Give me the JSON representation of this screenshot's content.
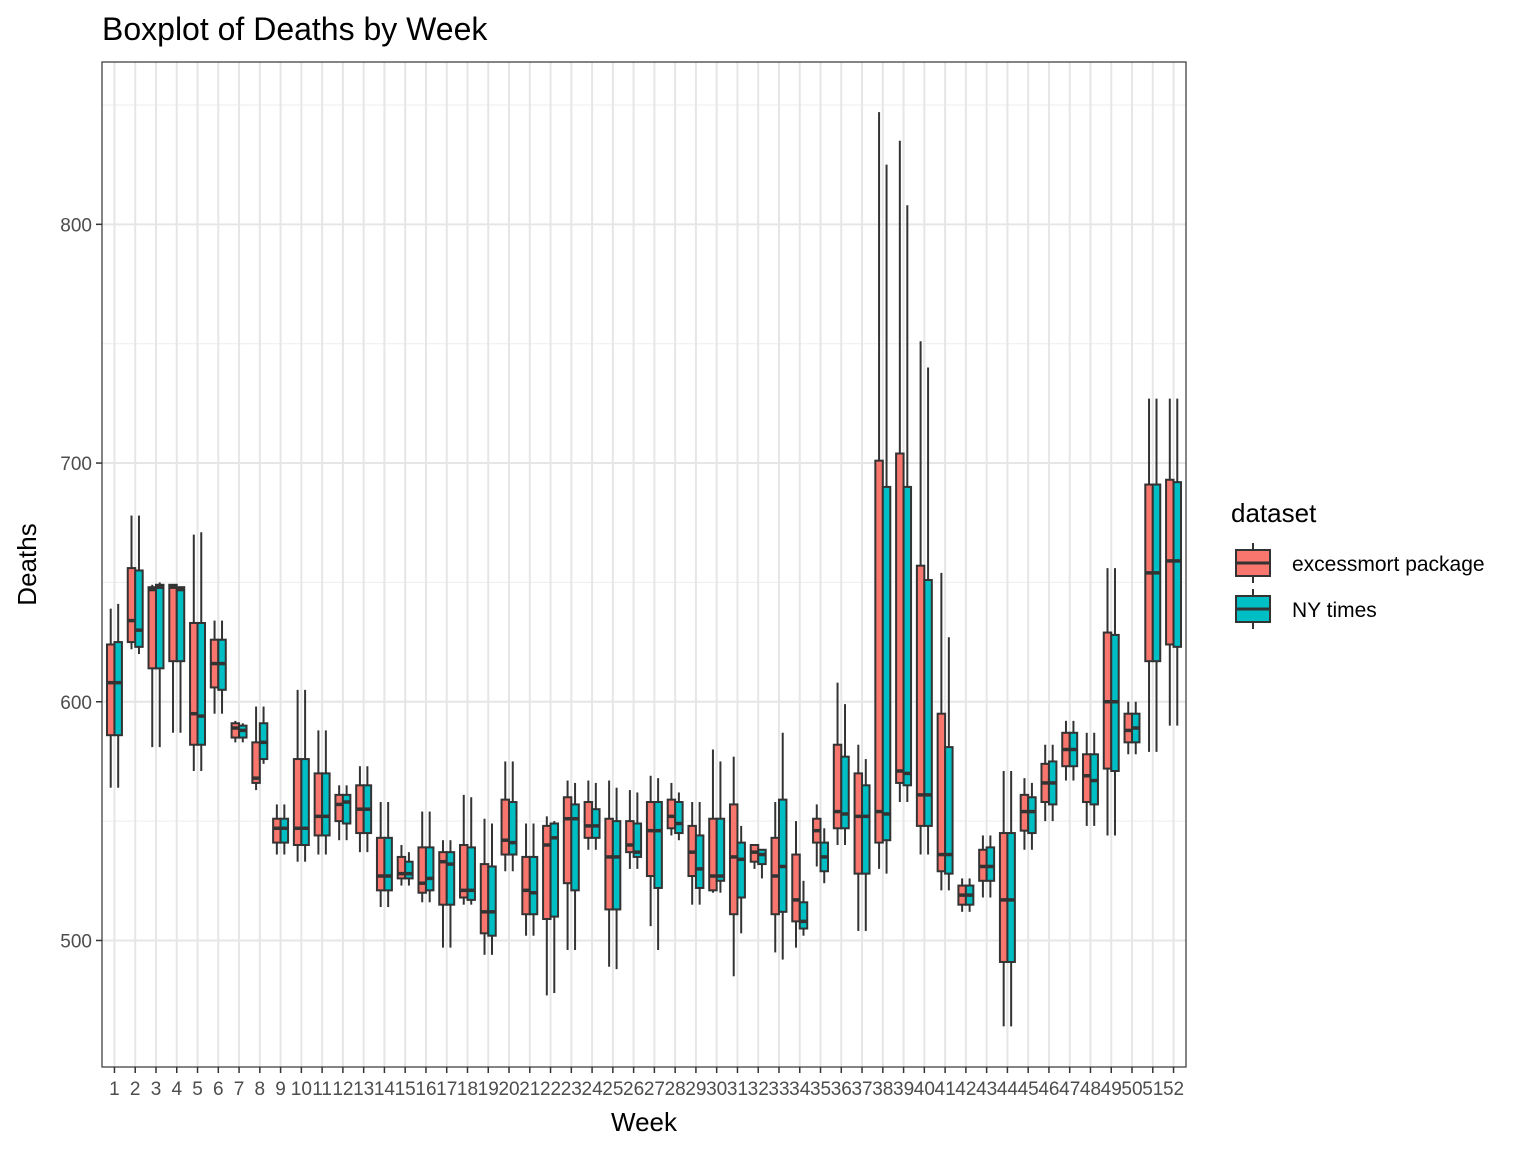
{
  "chart_data": {
    "type": "boxplot",
    "title": "Boxplot of Deaths by Week",
    "xlabel": "Week",
    "ylabel": "Deaths",
    "ylim": [
      447,
      868
    ],
    "yticks": [
      500,
      600,
      700,
      800
    ],
    "grid": true,
    "legend": {
      "title": "dataset",
      "placement": "right"
    },
    "categories": [
      "1",
      "2",
      "3",
      "4",
      "5",
      "6",
      "7",
      "8",
      "9",
      "10",
      "11",
      "12",
      "13",
      "14",
      "15",
      "16",
      "17",
      "18",
      "19",
      "20",
      "21",
      "22",
      "23",
      "24",
      "25",
      "26",
      "27",
      "28",
      "29",
      "30",
      "31",
      "32",
      "33",
      "34",
      "35",
      "36",
      "37",
      "38",
      "39",
      "40",
      "41",
      "42",
      "43",
      "44",
      "45",
      "46",
      "47",
      "48",
      "49",
      "50",
      "51",
      "52"
    ],
    "series": [
      {
        "name": "excessmort package",
        "color": "#F8766D",
        "boxes": [
          [
            564,
            586,
            608,
            624,
            639
          ],
          [
            622,
            625,
            634,
            656,
            678
          ],
          [
            581,
            614,
            647,
            648,
            649
          ],
          [
            587,
            617,
            648,
            649,
            649
          ],
          [
            571,
            582,
            595,
            633,
            670
          ],
          [
            595,
            606,
            616,
            626,
            634
          ],
          [
            583,
            585,
            589,
            591,
            592
          ],
          [
            563,
            566,
            568,
            583,
            598
          ],
          [
            536,
            541,
            547,
            551,
            557
          ],
          [
            533,
            540,
            547,
            576,
            605
          ],
          [
            536,
            544,
            552,
            570,
            588
          ],
          [
            542,
            550,
            557,
            561,
            565
          ],
          [
            537,
            545,
            555,
            565,
            573
          ],
          [
            514,
            521,
            527,
            543,
            558
          ],
          [
            523,
            526,
            528,
            535,
            540
          ],
          [
            516,
            520,
            524,
            539,
            554
          ],
          [
            497,
            515,
            533,
            537,
            542
          ],
          [
            515,
            518,
            521,
            540,
            561
          ],
          [
            494,
            503,
            512,
            532,
            551
          ],
          [
            529,
            536,
            542,
            559,
            575
          ],
          [
            502,
            511,
            521,
            535,
            549
          ],
          [
            477,
            509,
            540,
            548,
            552
          ],
          [
            496,
            524,
            551,
            560,
            567
          ],
          [
            538,
            543,
            548,
            558,
            567
          ],
          [
            489,
            513,
            535,
            551,
            567
          ],
          [
            530,
            537,
            540,
            550,
            563
          ],
          [
            506,
            527,
            546,
            558,
            569
          ],
          [
            544,
            547,
            552,
            559,
            566
          ],
          [
            515,
            527,
            537,
            548,
            558
          ],
          [
            520,
            521,
            527,
            551,
            580
          ],
          [
            485,
            511,
            535,
            557,
            577
          ],
          [
            530,
            533,
            537,
            540,
            540
          ],
          [
            495,
            511,
            527,
            543,
            558
          ],
          [
            497,
            508,
            517,
            536,
            550
          ],
          [
            531,
            541,
            546,
            551,
            557
          ],
          [
            540,
            547,
            554,
            582,
            608
          ],
          [
            504,
            528,
            552,
            570,
            582
          ],
          [
            530,
            541,
            554,
            701,
            847
          ],
          [
            558,
            566,
            571,
            704,
            835
          ],
          [
            536,
            548,
            561,
            657,
            751
          ],
          [
            521,
            529,
            536,
            595,
            654
          ],
          [
            512,
            515,
            519,
            523,
            526
          ],
          [
            518,
            525,
            531,
            538,
            544
          ],
          [
            464,
            491,
            517,
            545,
            571
          ],
          [
            538,
            546,
            554,
            561,
            568
          ],
          [
            550,
            558,
            566,
            574,
            582
          ],
          [
            567,
            573,
            580,
            587,
            592
          ],
          [
            548,
            558,
            569,
            578,
            587
          ],
          [
            544,
            572,
            600,
            629,
            656
          ],
          [
            578,
            583,
            588,
            595,
            600
          ],
          [
            579,
            617,
            654,
            691,
            727
          ],
          [
            590,
            624,
            659,
            693,
            727
          ]
        ]
      },
      {
        "name": "NY times",
        "color": "#00BFC4",
        "boxes": [
          [
            564,
            586,
            608,
            625,
            641
          ],
          [
            620,
            623,
            630,
            655,
            678
          ],
          [
            581,
            614,
            648,
            649,
            650
          ],
          [
            587,
            617,
            647,
            648,
            648
          ],
          [
            571,
            582,
            594,
            633,
            671
          ],
          [
            595,
            605,
            616,
            626,
            634
          ],
          [
            583,
            585,
            588,
            590,
            591
          ],
          [
            574,
            576,
            583,
            591,
            598
          ],
          [
            536,
            541,
            547,
            551,
            557
          ],
          [
            533,
            540,
            547,
            576,
            605
          ],
          [
            536,
            544,
            552,
            570,
            588
          ],
          [
            542,
            549,
            558,
            561,
            565
          ],
          [
            537,
            545,
            555,
            565,
            573
          ],
          [
            514,
            521,
            527,
            543,
            558
          ],
          [
            523,
            526,
            528,
            533,
            537
          ],
          [
            516,
            521,
            526,
            539,
            554
          ],
          [
            497,
            515,
            532,
            537,
            542
          ],
          [
            515,
            517,
            521,
            539,
            560
          ],
          [
            494,
            502,
            512,
            531,
            549
          ],
          [
            529,
            536,
            541,
            558,
            575
          ],
          [
            502,
            511,
            520,
            535,
            549
          ],
          [
            478,
            510,
            543,
            549,
            550
          ],
          [
            496,
            521,
            551,
            557,
            566
          ],
          [
            538,
            543,
            548,
            555,
            566
          ],
          [
            488,
            513,
            535,
            550,
            564
          ],
          [
            530,
            535,
            537,
            549,
            562
          ],
          [
            496,
            522,
            546,
            558,
            568
          ],
          [
            542,
            545,
            549,
            558,
            562
          ],
          [
            515,
            522,
            530,
            544,
            558
          ],
          [
            520,
            525,
            527,
            551,
            575
          ],
          [
            503,
            518,
            534,
            541,
            548
          ],
          [
            526,
            532,
            536,
            538,
            538
          ],
          [
            492,
            512,
            531,
            559,
            587
          ],
          [
            502,
            505,
            508,
            516,
            525
          ],
          [
            524,
            529,
            535,
            541,
            547
          ],
          [
            540,
            547,
            553,
            577,
            599
          ],
          [
            504,
            528,
            552,
            565,
            576
          ],
          [
            528,
            542,
            553,
            690,
            825
          ],
          [
            558,
            565,
            570,
            690,
            808
          ],
          [
            536,
            548,
            561,
            651,
            740
          ],
          [
            521,
            528,
            536,
            581,
            627
          ],
          [
            512,
            515,
            519,
            523,
            526
          ],
          [
            518,
            525,
            531,
            539,
            544
          ],
          [
            464,
            491,
            517,
            545,
            571
          ],
          [
            538,
            545,
            554,
            560,
            566
          ],
          [
            550,
            557,
            566,
            575,
            582
          ],
          [
            567,
            573,
            580,
            587,
            592
          ],
          [
            548,
            557,
            567,
            578,
            587
          ],
          [
            544,
            571,
            600,
            628,
            656
          ],
          [
            578,
            583,
            589,
            595,
            600
          ],
          [
            579,
            617,
            654,
            691,
            727
          ],
          [
            590,
            623,
            659,
            692,
            727
          ]
        ]
      }
    ]
  }
}
